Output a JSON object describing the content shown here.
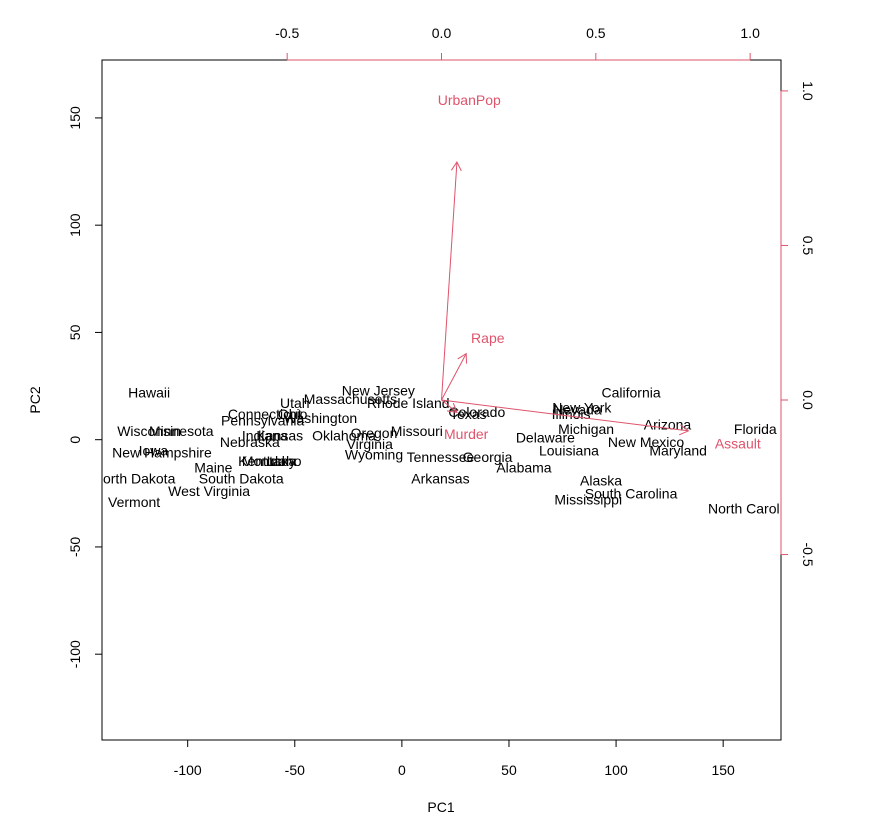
{
  "chart_data": {
    "type": "scatter",
    "title": "",
    "xlabel": "PC1",
    "ylabel": "PC2",
    "xlim": [
      -140,
      177
    ],
    "ylim": [
      -140,
      177
    ],
    "xticks": [
      -100,
      -50,
      0,
      50,
      100,
      150
    ],
    "yticks": [
      -100,
      -50,
      0,
      50,
      100,
      150
    ],
    "top_axis": {
      "lim": [
        -1.1,
        1.1
      ],
      "ticks": [
        -0.5,
        0.0,
        0.5,
        1.0
      ],
      "tick_labels": [
        "-0.5",
        "0.0",
        "0.5",
        "1.0"
      ]
    },
    "right_axis": {
      "lim": [
        -1.1,
        1.1
      ],
      "ticks": [
        -0.5,
        0.0,
        0.5,
        1.0
      ],
      "tick_labels": [
        "-0.5",
        "0.0",
        "0.5",
        "1.0"
      ]
    },
    "grid": false,
    "colors": {
      "points": "#000000",
      "arrows": "#DF536B"
    },
    "points": [
      {
        "label": "Hawaii",
        "x": -118,
        "y": 22
      },
      {
        "label": "Wisconsin",
        "x": -118,
        "y": 4
      },
      {
        "label": "Minnesota",
        "x": -103,
        "y": 4
      },
      {
        "label": "Iowa",
        "x": -116,
        "y": -5
      },
      {
        "label": "New Hampshire",
        "x": -112,
        "y": -6
      },
      {
        "label": "North Dakota",
        "x": -125,
        "y": -18
      },
      {
        "label": "Vermont",
        "x": -125,
        "y": -29
      },
      {
        "label": "Maine",
        "x": -88,
        "y": -13
      },
      {
        "label": "South Dakota",
        "x": -75,
        "y": -18
      },
      {
        "label": "West Virginia",
        "x": -90,
        "y": -24
      },
      {
        "label": "Connecticut",
        "x": -64,
        "y": 12
      },
      {
        "label": "Pennsylvania",
        "x": -65,
        "y": 9
      },
      {
        "label": "Nebraska",
        "x": -71,
        "y": -1
      },
      {
        "label": "Indiana",
        "x": -64,
        "y": 2
      },
      {
        "label": "Kansas",
        "x": -57,
        "y": 2
      },
      {
        "label": "Kentucky",
        "x": -63,
        "y": -10
      },
      {
        "label": "Montana",
        "x": -62,
        "y": -10
      },
      {
        "label": "Idaho",
        "x": -55,
        "y": -10
      },
      {
        "label": "Utah",
        "x": -50,
        "y": 17
      },
      {
        "label": "Ohio",
        "x": -51,
        "y": 12
      },
      {
        "label": "Massachusetts",
        "x": -24,
        "y": 19
      },
      {
        "label": "Washington",
        "x": -38,
        "y": 10
      },
      {
        "label": "New Jersey",
        "x": -11,
        "y": 23
      },
      {
        "label": "Rhode Island",
        "x": 3,
        "y": 17
      },
      {
        "label": "Oregon",
        "x": -13,
        "y": 3
      },
      {
        "label": "Oklahoma",
        "x": -27,
        "y": 2
      },
      {
        "label": "Missouri",
        "x": 7,
        "y": 4
      },
      {
        "label": "Virginia",
        "x": -15,
        "y": -2
      },
      {
        "label": "Wyoming",
        "x": -13,
        "y": -7
      },
      {
        "label": "Colorado",
        "x": 35,
        "y": 13
      },
      {
        "label": "Texas",
        "x": 31,
        "y": 12
      },
      {
        "label": "Tennessee",
        "x": 18,
        "y": -8
      },
      {
        "label": "Georgia",
        "x": 40,
        "y": -8
      },
      {
        "label": "Arkansas",
        "x": 18,
        "y": -18
      },
      {
        "label": "Alabama",
        "x": 57,
        "y": -13
      },
      {
        "label": "Delaware",
        "x": 67,
        "y": 1
      },
      {
        "label": "California",
        "x": 107,
        "y": 22
      },
      {
        "label": "New York",
        "x": 84,
        "y": 15
      },
      {
        "label": "Nevada",
        "x": 82,
        "y": 14
      },
      {
        "label": "Illinois",
        "x": 79,
        "y": 12
      },
      {
        "label": "Michigan",
        "x": 86,
        "y": 5
      },
      {
        "label": "Arizona",
        "x": 124,
        "y": 7
      },
      {
        "label": "New Mexico",
        "x": 114,
        "y": -1
      },
      {
        "label": "Louisiana",
        "x": 78,
        "y": -5
      },
      {
        "label": "Maryland",
        "x": 129,
        "y": -5
      },
      {
        "label": "Florida",
        "x": 165,
        "y": 5
      },
      {
        "label": "Alaska",
        "x": 93,
        "y": -19
      },
      {
        "label": "South Carolina",
        "x": 107,
        "y": -25
      },
      {
        "label": "Mississippi",
        "x": 87,
        "y": -28
      },
      {
        "label": "North Carolina",
        "x": 164,
        "y": -32
      }
    ],
    "arrows": [
      {
        "label": "UrbanPop",
        "x": 0.05,
        "y": 0.77,
        "label_x": 0.09,
        "label_y": 0.97
      },
      {
        "label": "Rape",
        "x": 0.08,
        "y": 0.15,
        "label_x": 0.15,
        "label_y": 0.2
      },
      {
        "label": "Murder",
        "x": 0.05,
        "y": -0.04,
        "label_x": 0.08,
        "label_y": -0.11
      },
      {
        "label": "Assault",
        "x": 0.8,
        "y": -0.1,
        "label_x": 0.96,
        "label_y": -0.14
      }
    ]
  }
}
